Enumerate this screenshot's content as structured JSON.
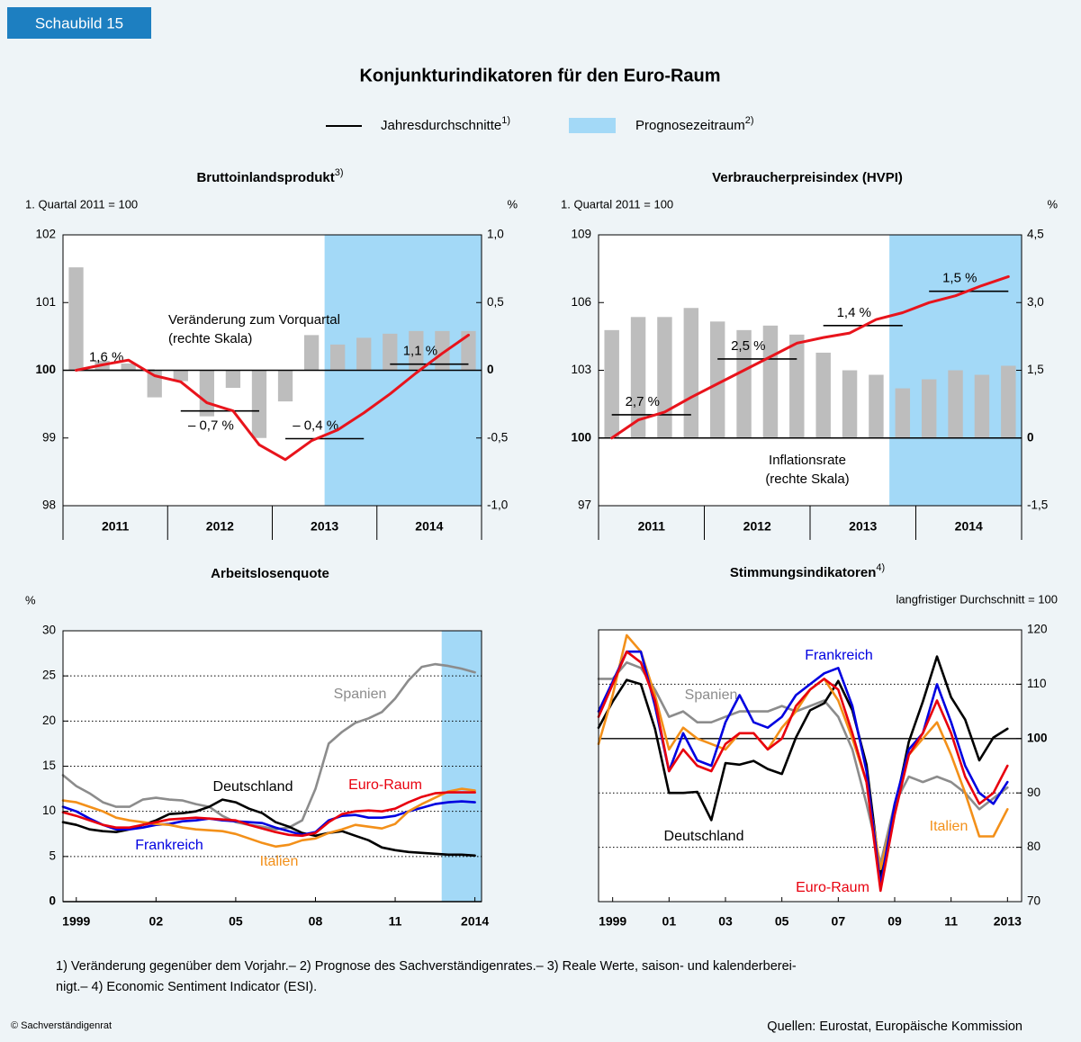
{
  "tag": "Schaubild 15",
  "title": "Konjunkturindikatoren für den Euro-Raum",
  "legend": [
    {
      "name": "Jahresdurchschnitte",
      "note": "1)",
      "color": "#000000"
    },
    {
      "name": "Prognosezeitraum",
      "note": "2)",
      "color": "#a3d9f7"
    }
  ],
  "chart_data": [
    {
      "type": "combo",
      "title": "Bruttoinlandsprodukt",
      "title_note": "3)",
      "ylabel": "1. Quartal 2011 = 100",
      "y2label": "%",
      "annotation": [
        "Veränderung zum Vorquartal",
        "(rechte Skala)"
      ],
      "x": [
        2011.125,
        2011.375,
        2011.625,
        2011.875,
        2012.125,
        2012.375,
        2012.625,
        2012.875,
        2013.125,
        2013.375,
        2013.625,
        2013.875,
        2014.125,
        2014.375,
        2014.625,
        2014.875
      ],
      "xlim": [
        2011,
        2015
      ],
      "xticks": [
        {
          "value": 2011.5,
          "label": "2011"
        },
        {
          "value": 2012.5,
          "label": "2012"
        },
        {
          "value": 2013.5,
          "label": "2013"
        },
        {
          "value": 2014.5,
          "label": "2014"
        }
      ],
      "ylim": [
        98,
        102
      ],
      "yticks": [
        98,
        99,
        100,
        101,
        102
      ],
      "ref": 100,
      "y2lim": [
        -1,
        1
      ],
      "y2ticks": [
        {
          "value": -1,
          "label": "-1,0"
        },
        {
          "value": -0.5,
          "label": "-0,5"
        },
        0,
        {
          "value": 0.5,
          "label": "0,5"
        },
        {
          "value": 1,
          "label": "1,0"
        }
      ],
      "y2ref": 0,
      "series": [
        {
          "type": "bar",
          "axis": "y2",
          "color": "#bdbdbd",
          "values": [
            0.76,
            0.07,
            0.05,
            -0.2,
            -0.08,
            -0.34,
            -0.13,
            -0.5,
            -0.23,
            0.26,
            0.19,
            0.24,
            0.27,
            0.29,
            0.29,
            0.29
          ]
        },
        {
          "type": "line",
          "color": "#e8141c",
          "values": [
            100,
            100.08,
            100.15,
            99.92,
            99.83,
            99.52,
            99.4,
            98.9,
            98.68,
            98.96,
            99.12,
            99.37,
            99.65,
            99.96,
            100.25,
            100.52
          ]
        }
      ],
      "annual": {
        "levels": [
          100,
          99.4,
          98.99,
          100.09
        ],
        "values": [
          1.6,
          -0.7,
          -0.4,
          1.1
        ],
        "value_labels": [
          "1,6 %",
          "– 0,7 %",
          "– 0,4 %",
          "1,1 %"
        ]
      },
      "forecast_start": 2013.5
    },
    {
      "type": "combo",
      "title": "Verbraucherpreisindex (HVPI)",
      "ylabel": "1. Quartal 2011 = 100",
      "y2label": "%",
      "annotation": [
        "Inflationsrate",
        "(rechte Skala)"
      ],
      "x": [
        2011.125,
        2011.375,
        2011.625,
        2011.875,
        2012.125,
        2012.375,
        2012.625,
        2012.875,
        2013.125,
        2013.375,
        2013.625,
        2013.875,
        2014.125,
        2014.375,
        2014.625,
        2014.875
      ],
      "xlim": [
        2011,
        2015
      ],
      "xticks": [
        {
          "value": 2011.5,
          "label": "2011"
        },
        {
          "value": 2012.5,
          "label": "2012"
        },
        {
          "value": 2013.5,
          "label": "2013"
        },
        {
          "value": 2014.5,
          "label": "2014"
        }
      ],
      "ylim": [
        97,
        109
      ],
      "yticks": [
        97,
        100,
        103,
        106,
        109
      ],
      "ref": 100,
      "y2lim": [
        -1.5,
        4.5
      ],
      "y2ticks": [
        {
          "value": -1.5,
          "label": "-1,5"
        },
        0,
        {
          "value": 1.5,
          "label": "1,5"
        },
        {
          "value": 3,
          "label": "3,0"
        },
        {
          "value": 4.5,
          "label": "4,5"
        }
      ],
      "y2ref": 0,
      "series": [
        {
          "type": "bar",
          "axis": "y2",
          "color": "#bdbdbd",
          "values": [
            2.39,
            2.68,
            2.68,
            2.88,
            2.58,
            2.39,
            2.49,
            2.29,
            1.89,
            1.5,
            1.4,
            1.1,
            1.3,
            1.5,
            1.4,
            1.6
          ]
        },
        {
          "type": "line",
          "color": "#e8141c",
          "values": [
            100,
            100.8,
            101.15,
            101.8,
            102.4,
            103,
            103.6,
            104.2,
            104.45,
            104.65,
            105.25,
            105.55,
            106,
            106.3,
            106.75,
            107.15
          ]
        }
      ],
      "annual": {
        "levels": [
          101.03,
          103.5,
          104.98,
          106.5
        ],
        "values": [
          2.7,
          2.5,
          1.4,
          1.5
        ],
        "value_labels": [
          "2,7 %",
          "2,5 %",
          "1,4 %",
          "1,5 %"
        ]
      },
      "forecast_start": 2013.75
    },
    {
      "type": "line",
      "title": "Arbeitslosenquote",
      "ylabel": "%",
      "grid": "dotted",
      "yaxis": "left",
      "x": [
        1999,
        1999.5,
        2000,
        2000.5,
        2001,
        2001.5,
        2002,
        2002.5,
        2003,
        2003.5,
        2004,
        2004.5,
        2005,
        2005.5,
        2006,
        2006.5,
        2007,
        2007.5,
        2008,
        2008.5,
        2009,
        2009.5,
        2010,
        2010.5,
        2011,
        2011.5,
        2012,
        2012.5,
        2013,
        2013.5,
        2014,
        2014.5
      ],
      "xlim": [
        1999,
        2014.75
      ],
      "xticks": [
        {
          "value": 1999.5,
          "label": "1999"
        },
        {
          "value": 2002.5,
          "label": "02"
        },
        {
          "value": 2005.5,
          "label": "05"
        },
        {
          "value": 2008.5,
          "label": "08"
        },
        {
          "value": 2011.5,
          "label": "11"
        },
        {
          "value": 2014.5,
          "label": "2014"
        }
      ],
      "ylim": [
        0,
        30
      ],
      "yticks": [
        0,
        5,
        10,
        15,
        20,
        25,
        30
      ],
      "ref": 0,
      "forecast_start": 2013.25,
      "series": [
        {
          "name": "Spanien",
          "color": "#8c8c8c",
          "values": [
            14,
            12.8,
            12,
            11,
            10.5,
            10.5,
            11.3,
            11.5,
            11.3,
            11.2,
            10.8,
            10.5,
            9.5,
            8.8,
            8.5,
            8.3,
            8,
            8.2,
            9,
            12.5,
            17.5,
            18.8,
            19.8,
            20.3,
            21,
            22.5,
            24.5,
            26,
            26.3,
            26.1,
            25.8,
            25.4
          ]
        },
        {
          "name": "Deutschland",
          "color": "#000000",
          "values": [
            8.8,
            8.5,
            8,
            7.8,
            7.7,
            8,
            8.5,
            9,
            9.7,
            9.8,
            10,
            10.5,
            11.3,
            11,
            10.3,
            9.8,
            8.8,
            8.3,
            7.6,
            7.3,
            7.6,
            7.8,
            7.3,
            6.8,
            6,
            5.7,
            5.5,
            5.4,
            5.3,
            5.2,
            5.2,
            5.1
          ]
        },
        {
          "name": "Frankreich",
          "color": "#0000e0",
          "values": [
            10.5,
            10,
            9.2,
            8.5,
            8,
            8,
            8.2,
            8.5,
            8.6,
            8.9,
            9,
            9.2,
            9,
            8.9,
            8.8,
            8.7,
            8.2,
            7.8,
            7.4,
            7.7,
            9,
            9.5,
            9.6,
            9.3,
            9.3,
            9.5,
            10,
            10.4,
            10.8,
            11,
            11.1,
            11
          ]
        },
        {
          "name": "Italien",
          "color": "#f39019",
          "values": [
            11.2,
            11,
            10.5,
            10,
            9.3,
            9,
            8.8,
            8.6,
            8.5,
            8.2,
            8,
            7.9,
            7.8,
            7.5,
            7,
            6.5,
            6.1,
            6.3,
            6.8,
            7,
            7.6,
            8,
            8.5,
            8.3,
            8.1,
            8.6,
            10,
            10.8,
            11.5,
            12.2,
            12.5,
            12.3
          ]
        },
        {
          "name": "Euro-Raum",
          "color": "#e8000e",
          "values": [
            9.9,
            9.5,
            9,
            8.5,
            8.2,
            8.2,
            8.5,
            8.8,
            9.1,
            9.2,
            9.3,
            9.2,
            9.1,
            9,
            8.5,
            8.1,
            7.7,
            7.4,
            7.3,
            7.6,
            8.8,
            9.7,
            10,
            10.1,
            10,
            10.3,
            11,
            11.6,
            12,
            12.1,
            12.1,
            12.1
          ]
        }
      ]
    },
    {
      "type": "line",
      "title": "Stimmungsindikatoren",
      "title_note": "4)",
      "ylabel": "langfristiger Durchschnitt = 100",
      "grid": "dotted",
      "yaxis": "right",
      "x": [
        1999,
        1999.5,
        2000,
        2000.5,
        2001,
        2001.5,
        2002,
        2002.5,
        2003,
        2003.5,
        2004,
        2004.5,
        2005,
        2005.5,
        2006,
        2006.5,
        2007,
        2007.5,
        2008,
        2008.5,
        2009,
        2009.5,
        2010,
        2010.5,
        2011,
        2011.5,
        2012,
        2012.5,
        2013,
        2013.5
      ],
      "xlim": [
        1999,
        2014
      ],
      "xticks": [
        {
          "value": 1999.5,
          "label": "1999"
        },
        {
          "value": 2001.5,
          "label": "01"
        },
        {
          "value": 2003.5,
          "label": "03"
        },
        {
          "value": 2005.5,
          "label": "05"
        },
        {
          "value": 2007.5,
          "label": "07"
        },
        {
          "value": 2009.5,
          "label": "09"
        },
        {
          "value": 2011.5,
          "label": "11"
        },
        {
          "value": 2013.5,
          "label": "2013"
        }
      ],
      "ylim": [
        70,
        120
      ],
      "yticks": [
        70,
        80,
        90,
        100,
        110,
        120
      ],
      "ref": 100,
      "series": [
        {
          "name": "Spanien",
          "color": "#8c8c8c",
          "values": [
            111,
            111,
            114,
            113,
            109,
            104,
            105,
            103,
            103,
            104,
            105,
            105,
            105,
            106,
            105,
            106,
            107,
            104,
            98,
            88,
            77,
            88,
            93,
            92,
            93,
            92,
            90,
            87,
            89,
            91
          ]
        },
        {
          "name": "Deutschland",
          "color": "#000000",
          "values": [
            102,
            106.8,
            110.8,
            110,
            101.8,
            90,
            90,
            90.2,
            85,
            95.5,
            95.2,
            95.9,
            94.4,
            93.5,
            100.2,
            105.2,
            106.5,
            110.6,
            105.2,
            95.2,
            74.5,
            86.9,
            99.4,
            106.8,
            115.1,
            107.6,
            103.5,
            96,
            100.2,
            101.8
          ]
        },
        {
          "name": "Italien",
          "color": "#f39019",
          "values": [
            99,
            108,
            119,
            116,
            108,
            98,
            102,
            100,
            99,
            98,
            101,
            101,
            98,
            102,
            105,
            109,
            111,
            107,
            100,
            92,
            76,
            87,
            97,
            100,
            103,
            97,
            90,
            82,
            82,
            87
          ]
        },
        {
          "name": "Frankreich",
          "color": "#0000e0",
          "values": [
            105,
            110.5,
            116,
            116,
            106,
            94,
            101,
            96,
            95,
            103,
            108,
            103,
            102,
            104,
            108,
            110,
            112,
            113,
            106,
            94,
            73,
            88,
            98,
            101,
            110,
            103,
            95,
            90,
            88,
            92
          ]
        },
        {
          "name": "Euro-Raum",
          "color": "#e8000e",
          "values": [
            104,
            110,
            116,
            114,
            107,
            94,
            98,
            95,
            94,
            99,
            101,
            101,
            98,
            100,
            106,
            109,
            111,
            109,
            101,
            92,
            72,
            86,
            97,
            101,
            107,
            101,
            93,
            88,
            90,
            95
          ]
        }
      ]
    }
  ],
  "footnotes": [
    "1) Veränderung gegenüber dem Vorjahr.– 2) Prognose des Sachverständigenrates.– 3) Reale Werte, saison- und kalenderberei-",
    "nigt.– 4) Economic Sentiment Indicator (ESI)."
  ],
  "source": "Quellen: Eurostat, Europäische Kommission",
  "copyright": "© Sachverständigenrat"
}
